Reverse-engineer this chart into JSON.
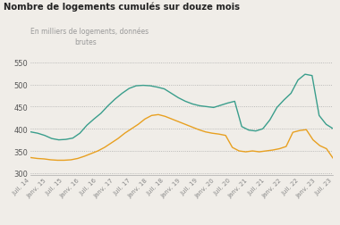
{
  "title": "Nombre de logements cumulés sur douze mois",
  "subtitle": "En milliers de logements, données\nbrutes",
  "ylim": [
    295,
    560
  ],
  "yticks": [
    300,
    350,
    400,
    450,
    500,
    550
  ],
  "bg_color": "#f0ede8",
  "plot_bg_color": "#f0ede8",
  "line_autorise_color": "#3a9e8c",
  "line_commence_color": "#e8a020",
  "x_labels": [
    "Juil. 14",
    "Janv. 15",
    "Juil. 15",
    "Janv. 16",
    "Juil. 16",
    "Janv. 17",
    "Juil. 17",
    "Janv. 18",
    "Juil. 18",
    "Janv. 19",
    "Juil. 19",
    "Janv. 20",
    "Juil. 20",
    "Janv. 21",
    "Juil. 21",
    "Janv. 22",
    "Juil. 22",
    "Janv. 23",
    "Juil. 23"
  ],
  "autorise": [
    393,
    390,
    385,
    378,
    375,
    376,
    379,
    390,
    408,
    422,
    435,
    452,
    467,
    480,
    491,
    497,
    498,
    497,
    494,
    490,
    480,
    470,
    462,
    456,
    452,
    450,
    448,
    453,
    458,
    462,
    405,
    397,
    395,
    400,
    420,
    448,
    465,
    480,
    510,
    523,
    520,
    430,
    410,
    400
  ],
  "commence": [
    335,
    333,
    332,
    330,
    329,
    329,
    330,
    333,
    338,
    344,
    350,
    358,
    368,
    378,
    390,
    400,
    410,
    422,
    430,
    432,
    428,
    422,
    416,
    410,
    404,
    398,
    393,
    390,
    388,
    385,
    358,
    350,
    348,
    350,
    348,
    350,
    352,
    355,
    360,
    392,
    396,
    398,
    375,
    362,
    355,
    333
  ],
  "n_autorise": 44,
  "n_commence": 46
}
